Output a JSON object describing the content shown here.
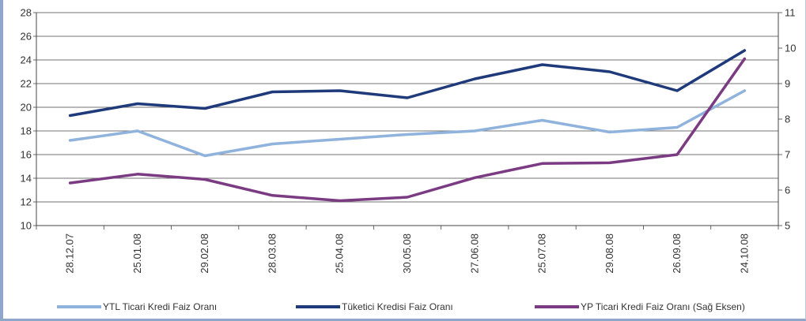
{
  "chart_data": {
    "type": "line",
    "categories": [
      "28.12.07",
      "25.01.08",
      "29.02.08",
      "28.03.08",
      "25.04.08",
      "30.05.08",
      "27.06.08",
      "25.07.08",
      "29.08.08",
      "26.09.08",
      "24.10.08"
    ],
    "series": [
      {
        "name": "YTL Ticari Kredi Faiz Oranı",
        "axis": "left",
        "color": "#8fb3dc",
        "values": [
          17.2,
          18.0,
          15.9,
          16.9,
          17.3,
          17.7,
          18.0,
          18.9,
          17.9,
          18.3,
          21.4
        ]
      },
      {
        "name": "Tüketici Kredisi Faiz Oranı",
        "axis": "left",
        "color": "#1f3a7a",
        "values": [
          19.3,
          20.3,
          19.9,
          21.3,
          21.4,
          20.8,
          22.4,
          23.6,
          23.0,
          21.4,
          24.8
        ]
      },
      {
        "name": "YP Ticari Kredi Faiz Oranı (Sağ Eksen)",
        "axis": "right",
        "color": "#7b3b82",
        "values": [
          6.2,
          6.45,
          6.3,
          5.85,
          5.7,
          5.8,
          6.35,
          6.75,
          6.77,
          7.0,
          9.7
        ]
      }
    ],
    "y_left": {
      "min": 10,
      "max": 28,
      "step": 2,
      "ticks": [
        10,
        12,
        14,
        16,
        18,
        20,
        22,
        24,
        26,
        28
      ]
    },
    "y_right": {
      "min": 5,
      "max": 11,
      "step": 1,
      "ticks": [
        5,
        6,
        7,
        8,
        9,
        10,
        11
      ]
    },
    "grid": "horizontal",
    "legend": "bottom",
    "xlabel": "",
    "ylabel": "",
    "title": ""
  }
}
